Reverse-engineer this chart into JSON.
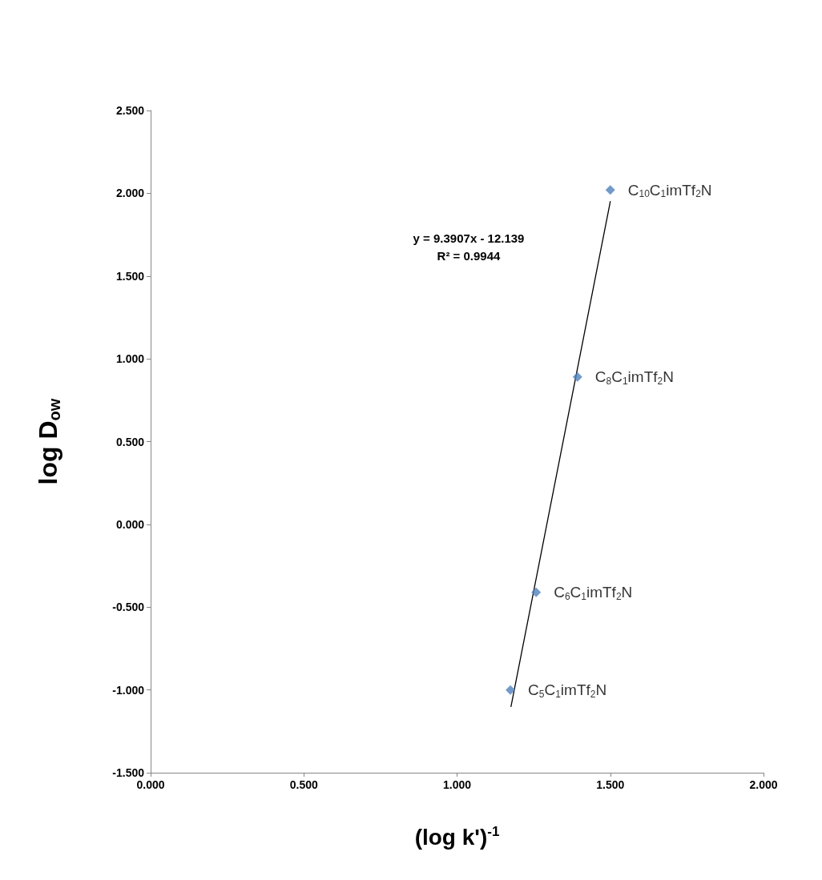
{
  "chart_data": {
    "type": "scatter",
    "xlabel": "(log k')$^{-1}$",
    "ylabel": "log D$_{ow}$",
    "xlim": [
      0,
      2
    ],
    "ylim": [
      -1.5,
      2.5
    ],
    "xticks": [
      {
        "value": 0,
        "label": "0.000"
      },
      {
        "value": 0.5,
        "label": "0.500"
      },
      {
        "value": 1,
        "label": "1.000"
      },
      {
        "value": 1.5,
        "label": "1.500"
      },
      {
        "value": 2,
        "label": "2.000"
      }
    ],
    "yticks": [
      {
        "value": -1.5,
        "label": "-1.500"
      },
      {
        "value": -1,
        "label": "-1.000"
      },
      {
        "value": -0.5,
        "label": "-0.500"
      },
      {
        "value": 0,
        "label": "0.000"
      },
      {
        "value": 0.5,
        "label": "0.500"
      },
      {
        "value": 1,
        "label": "1.000"
      },
      {
        "value": 1.5,
        "label": "1.500"
      },
      {
        "value": 2,
        "label": "2.000"
      },
      {
        "value": 2.5,
        "label": "2.500"
      }
    ],
    "line_style": "solid",
    "series": [
      {
        "color": "#4f81bd",
        "marker": "diamond",
        "x": [
          1.174,
          1.258,
          1.393,
          1.5
        ],
        "values": [
          -1.0,
          -0.41,
          0.89,
          2.02
        ]
      },
      {
        "type": "line",
        "color": "#000000",
        "marker": "none",
        "x": [
          1.176,
          1.5
        ],
        "values": [
          -1.1,
          1.95
        ]
      }
    ],
    "annotations": [
      "y = 9.3907x - 12.139",
      "R² = 0.9944",
      {
        "text": "C$_{5}$C$_{1}$imTf$_{2}$N",
        "x": 1.174,
        "y": -1.0
      },
      {
        "text": "C$_{6}$C$_{1}$imTf$_{2}$N",
        "x": 1.258,
        "y": -0.41
      },
      {
        "text": "C$_{8}$C$_{1}$imTf$_{2}$N",
        "x": 1.393,
        "y": 0.89
      },
      {
        "text": "C$_{10}$C$_{1}$imTf$_{2}$N",
        "x": 1.5,
        "y": 2.02
      }
    ]
  }
}
